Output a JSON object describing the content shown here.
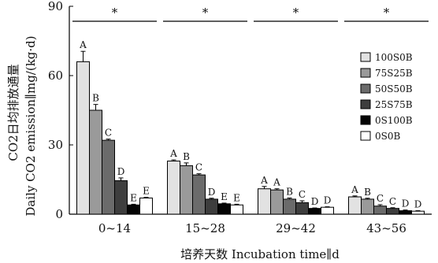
{
  "chart_data": {
    "type": "bar",
    "categories": [
      "0~14",
      "15~28",
      "29~42",
      "43~56"
    ],
    "series": [
      {
        "name": "100S0B",
        "values": [
          66,
          23,
          11,
          7.5
        ],
        "errors": [
          4.5,
          0.5,
          1.0,
          0.4
        ],
        "letters": [
          "A",
          "A",
          "A",
          "A"
        ],
        "color": "#e2e2e2"
      },
      {
        "name": "75S25B",
        "values": [
          45,
          21,
          10.5,
          6.5
        ],
        "errors": [
          2.5,
          1.2,
          0.5,
          0.4
        ],
        "letters": [
          "B",
          "B",
          "A",
          "B"
        ],
        "color": "#9a9a9a"
      },
      {
        "name": "50S50B",
        "values": [
          32,
          17,
          6.5,
          3.5
        ],
        "errors": [
          0.5,
          0.5,
          0.5,
          0.6
        ],
        "letters": [
          "C",
          "C",
          "B",
          "C"
        ],
        "color": "#6b6b6b"
      },
      {
        "name": "25S75B",
        "values": [
          14.5,
          6.5,
          5,
          2.5
        ],
        "errors": [
          1.2,
          0.4,
          0.8,
          0.3
        ],
        "letters": [
          "D",
          "D",
          "C",
          "C"
        ],
        "color": "#3e3e3e"
      },
      {
        "name": "0S100B",
        "values": [
          4,
          4.5,
          2.5,
          1.5
        ],
        "errors": [
          0.3,
          0.3,
          0.2,
          0.3
        ],
        "letters": [
          "E",
          "E",
          "D",
          "D"
        ],
        "color": "#050505"
      },
      {
        "name": "0S0B",
        "values": [
          7,
          4,
          3,
          1.3
        ],
        "errors": [
          0.3,
          0.3,
          0.2,
          0.2
        ],
        "letters": [
          "E",
          "E",
          "D",
          "D"
        ],
        "color": "#ffffff"
      }
    ],
    "ylim": [
      0,
      90
    ],
    "yticks": [
      "0",
      "30",
      "60",
      "90"
    ],
    "ytick_values": [
      0,
      30,
      60,
      90
    ],
    "significance_marks": [
      "*",
      "*",
      "*",
      "*"
    ],
    "xlabel": "培养天数 Incubation time∥d",
    "ylabel_line1": "CO2日均排放通量",
    "ylabel_line2": "Daily CO2 emission∥mg/(kg·d)",
    "legend_position": "right"
  }
}
